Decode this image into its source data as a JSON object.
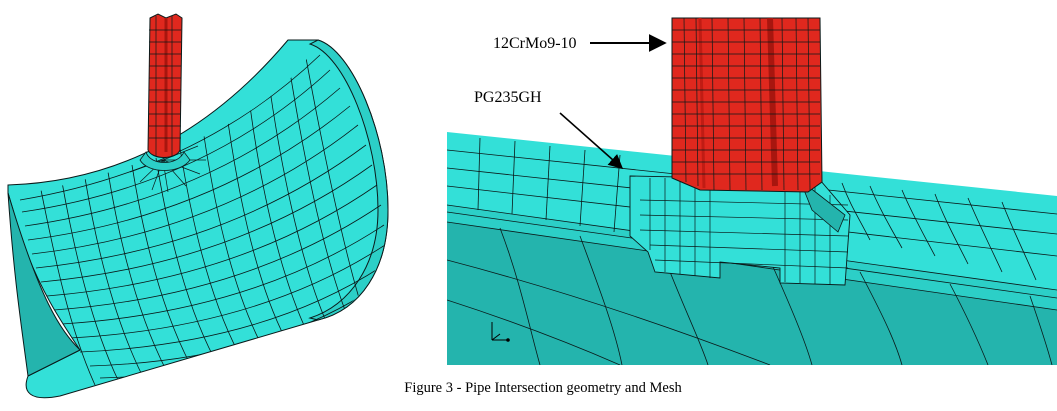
{
  "labels": {
    "branch_material": "12CrMo9-10",
    "run_material": "PG235GH"
  },
  "caption": "Figure 3 - Pipe Intersection geometry and Mesh",
  "colors": {
    "run_pipe": "#33e0d8",
    "run_pipe_dark": "#24b4ad",
    "branch_pipe": "#e0281e",
    "branch_pipe_dark": "#a8160f",
    "mesh_line": "#0a1a1a"
  },
  "icons": [
    "coordinate-triad-icon"
  ]
}
